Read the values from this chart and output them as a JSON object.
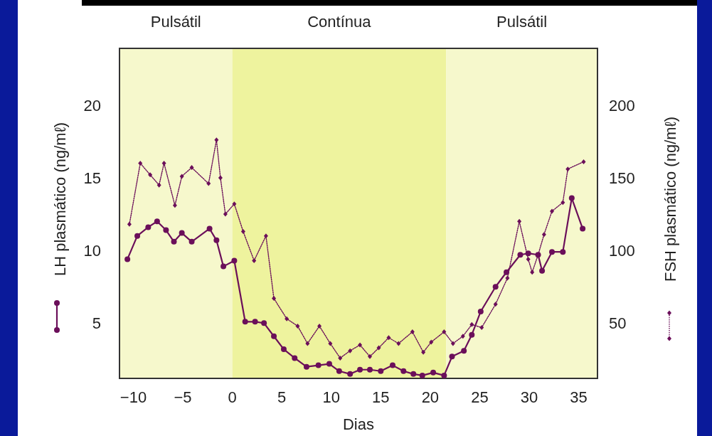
{
  "chart_data": {
    "type": "line",
    "xlabel": "Dias",
    "ylabel": "LH plasmático (ng/mℓ)",
    "y2label": "FSH plasmático (ng/mℓ)",
    "xlim": [
      -11.4,
      36.9
    ],
    "xticks": [
      -10,
      -5,
      0,
      5,
      10,
      15,
      20,
      25,
      30,
      35
    ],
    "ylim": [
      1.2,
      23.9
    ],
    "yticks": [
      5,
      10,
      15,
      20
    ],
    "y2lim": [
      12,
      239
    ],
    "y2ticks": [
      50,
      100,
      150,
      200
    ],
    "grid": false,
    "bands": [
      {
        "axis": "x",
        "from": -11.4,
        "to": 0,
        "label": "Pulsátil",
        "color": "#f6f8cc"
      },
      {
        "axis": "x",
        "from": 0,
        "to": 21.6,
        "label": "Contínua",
        "color": "#eef39e"
      },
      {
        "axis": "x",
        "from": 21.6,
        "to": 36.9,
        "label": "Pulsátil",
        "color": "#f6f8cc"
      }
    ],
    "series": [
      {
        "color": "#6b0f5a",
        "marker": "circle",
        "line_style": "solid",
        "x": [
          -10.6,
          -9.6,
          -8.5,
          -7.6,
          -6.7,
          -5.9,
          -5.1,
          -4.1,
          -2.3,
          -1.6,
          -0.9,
          0.2,
          1.3,
          2.3,
          3.2,
          4.2,
          5.2,
          6.3,
          7.5,
          8.7,
          9.8,
          10.8,
          11.9,
          12.9,
          13.9,
          15.0,
          16.2,
          17.3,
          18.3,
          19.2,
          20.3,
          21.4,
          22.2,
          23.4,
          24.2,
          25.1,
          26.6,
          27.7,
          29.1,
          29.9,
          30.9,
          31.3,
          32.3,
          33.4,
          34.3,
          35.4
        ],
        "values": [
          9.4,
          11.0,
          11.6,
          12.0,
          11.4,
          10.6,
          11.2,
          10.6,
          11.5,
          10.7,
          8.9,
          9.3,
          5.1,
          5.1,
          5.0,
          4.1,
          3.2,
          2.6,
          2.0,
          2.1,
          2.2,
          1.7,
          1.5,
          1.8,
          1.8,
          1.7,
          2.1,
          1.7,
          1.5,
          1.4,
          1.6,
          1.4,
          2.7,
          3.1,
          4.2,
          5.8,
          7.5,
          8.5,
          9.7,
          9.8,
          9.7,
          8.6,
          9.9,
          9.9,
          13.6,
          11.5
        ]
      },
      {
        "color": "#6b0f5a",
        "marker": "diamond",
        "line_style": "dotted",
        "axis": "y2",
        "x": [
          -10.4,
          -9.3,
          -8.3,
          -7.4,
          -6.9,
          -5.8,
          -5.1,
          -4.1,
          -2.4,
          -1.6,
          -1.2,
          -0.7,
          0.2,
          1.1,
          2.2,
          3.4,
          4.2,
          5.5,
          6.6,
          7.6,
          8.8,
          9.9,
          10.9,
          11.9,
          12.9,
          13.9,
          14.8,
          15.8,
          16.8,
          18.2,
          19.3,
          20.1,
          21.4,
          22.3,
          23.3,
          24.2,
          25.2,
          26.6,
          27.8,
          29.0,
          29.9,
          30.3,
          30.9,
          31.5,
          32.3,
          33.4,
          33.9,
          35.5
        ],
        "values": [
          118,
          160,
          152,
          145,
          160,
          131,
          151,
          157,
          146,
          176,
          150,
          125,
          132,
          113,
          93,
          110,
          67,
          53,
          48,
          36,
          48,
          36,
          26,
          31,
          35,
          27,
          33,
          40,
          36,
          44,
          30,
          37,
          44,
          36,
          41,
          49,
          47,
          63,
          81,
          120,
          94,
          85,
          97,
          111,
          127,
          133,
          156,
          161
        ]
      }
    ]
  }
}
